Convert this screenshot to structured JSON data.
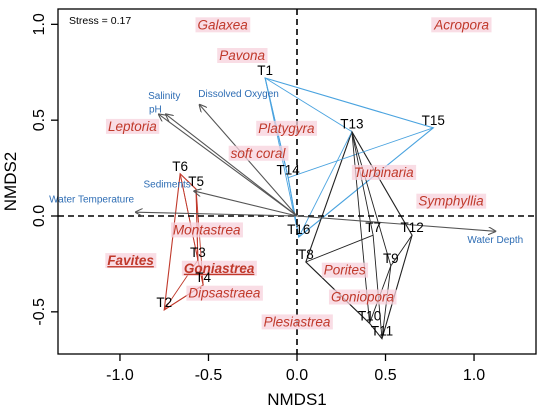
{
  "chart_data": {
    "type": "scatter",
    "title": "",
    "xlabel": "NMDS1",
    "ylabel": "NMDS2",
    "xlim": [
      -1.35,
      1.35
    ],
    "ylim": [
      -0.72,
      1.08
    ],
    "xticks": [
      {
        "value": -1.0,
        "label": "-1.0"
      },
      {
        "value": -0.5,
        "label": "-0.5"
      },
      {
        "value": 0.0,
        "label": "0.0"
      },
      {
        "value": 0.5,
        "label": "0.5"
      },
      {
        "value": 1.0,
        "label": "1.0"
      }
    ],
    "yticks": [
      {
        "value": -0.5,
        "label": "-0.5"
      },
      {
        "value": 0.0,
        "label": "0.0"
      },
      {
        "value": 0.5,
        "label": "0.5"
      },
      {
        "value": 1.0,
        "label": "1.0"
      }
    ],
    "annotation": "Stress = 0.17",
    "grid": false,
    "reference_lines": {
      "x": 0,
      "y": 0,
      "style": "dashed"
    },
    "colors": {
      "genus": "#c0392b",
      "env_label": "#2e6db4",
      "env_arrow": "#555555",
      "hull_red": "#c0392b",
      "hull_blue": "#4aa3df",
      "hull_black": "#222222",
      "label_bg": "#f7d2dc"
    },
    "sites": [
      {
        "label": "T1",
        "x": -0.18,
        "y": 0.72
      },
      {
        "label": "T2",
        "x": -0.75,
        "y": -0.49
      },
      {
        "label": "T3",
        "x": -0.56,
        "y": -0.23
      },
      {
        "label": "T4",
        "x": -0.53,
        "y": -0.36
      },
      {
        "label": "T5",
        "x": -0.57,
        "y": 0.14
      },
      {
        "label": "T6",
        "x": -0.66,
        "y": 0.22
      },
      {
        "label": "T7",
        "x": 0.43,
        "y": -0.1
      },
      {
        "label": "T8",
        "x": 0.05,
        "y": -0.24
      },
      {
        "label": "T9",
        "x": 0.53,
        "y": -0.26
      },
      {
        "label": "T10",
        "x": 0.41,
        "y": -0.56
      },
      {
        "label": "T11",
        "x": 0.48,
        "y": -0.64
      },
      {
        "label": "T12",
        "x": 0.65,
        "y": -0.1
      },
      {
        "label": "T13",
        "x": 0.31,
        "y": 0.44
      },
      {
        "label": "T14",
        "x": -0.05,
        "y": 0.2
      },
      {
        "label": "T15",
        "x": 0.77,
        "y": 0.46
      },
      {
        "label": "T16",
        "x": 0.01,
        "y": -0.11
      }
    ],
    "hulls": [
      {
        "color": "red",
        "sites": [
          "T6",
          "T5",
          "T3",
          "T4",
          "T2"
        ]
      },
      {
        "color": "blue",
        "sites": [
          "T1",
          "T15",
          "T16",
          "T14"
        ]
      },
      {
        "color": "black",
        "sites": [
          "T13",
          "T12",
          "T11",
          "T10",
          "T8"
        ]
      }
    ],
    "inner_lines": {
      "red": [
        [
          "T5",
          "T3"
        ],
        [
          "T5",
          "T4"
        ],
        [
          "T6",
          "T4"
        ],
        [
          "T3",
          "T2"
        ],
        [
          "T4",
          "T2"
        ],
        [
          "T6",
          "T3"
        ]
      ],
      "blue": [
        [
          "T1",
          "T14"
        ],
        [
          "T1",
          "T16"
        ],
        [
          "T14",
          "T16"
        ],
        [
          "T14",
          "T15"
        ],
        [
          "T1",
          "T13"
        ],
        [
          "T13",
          "T16"
        ]
      ],
      "black": [
        [
          "T13",
          "T7"
        ],
        [
          "T13",
          "T9"
        ],
        [
          "T13",
          "T10"
        ],
        [
          "T7",
          "T11"
        ],
        [
          "T7",
          "T8"
        ],
        [
          "T9",
          "T10"
        ],
        [
          "T9",
          "T11"
        ],
        [
          "T12",
          "T9"
        ],
        [
          "T8",
          "T10"
        ]
      ]
    },
    "genera": [
      {
        "label": "Galaxea",
        "x": -0.42,
        "y": 1.0,
        "underline": false,
        "bold": false
      },
      {
        "label": "Acropora",
        "x": 0.93,
        "y": 1.0,
        "underline": false,
        "bold": false
      },
      {
        "label": "Pavona",
        "x": -0.31,
        "y": 0.84,
        "underline": false,
        "bold": false
      },
      {
        "label": "Leptoria",
        "x": -0.93,
        "y": 0.47,
        "underline": false,
        "bold": false
      },
      {
        "label": "Platygyra",
        "x": -0.06,
        "y": 0.46,
        "underline": false,
        "bold": false
      },
      {
        "label": "soft coral",
        "x": -0.22,
        "y": 0.33,
        "underline": false,
        "bold": false
      },
      {
        "label": "Turbinaria",
        "x": 0.49,
        "y": 0.23,
        "underline": false,
        "bold": false
      },
      {
        "label": "Symphyllia",
        "x": 0.87,
        "y": 0.08,
        "underline": false,
        "bold": false
      },
      {
        "label": "Montastrea",
        "x": -0.51,
        "y": -0.07,
        "underline": false,
        "bold": false
      },
      {
        "label": "Favites",
        "x": -0.94,
        "y": -0.23,
        "underline": true,
        "bold": true
      },
      {
        "label": "Goniastrea",
        "x": -0.44,
        "y": -0.27,
        "underline": true,
        "bold": true
      },
      {
        "label": "Porites",
        "x": 0.27,
        "y": -0.28,
        "underline": false,
        "bold": false
      },
      {
        "label": "Dipsastraea",
        "x": -0.41,
        "y": -0.4,
        "underline": false,
        "bold": false
      },
      {
        "label": "Goniopora",
        "x": 0.37,
        "y": -0.42,
        "underline": false,
        "bold": false
      },
      {
        "label": "Plesiastrea",
        "x": 0.0,
        "y": -0.55,
        "underline": false,
        "bold": false
      }
    ],
    "env_vectors": [
      {
        "label": "Salinity",
        "x": -0.74,
        "y": 0.53,
        "lx": -0.75,
        "ly": 0.61,
        "anchor": "middle"
      },
      {
        "label": "pH",
        "x": -0.78,
        "y": 0.53,
        "lx": -0.8,
        "ly": 0.54,
        "anchor": "middle"
      },
      {
        "label": "Dissolved Oxygen",
        "x": -0.55,
        "y": 0.58,
        "lx": -0.33,
        "ly": 0.62,
        "anchor": "middle"
      },
      {
        "label": "Sediments",
        "x": -0.58,
        "y": 0.13,
        "lx": -0.6,
        "ly": 0.15,
        "anchor": "end"
      },
      {
        "label": "Water Temperature",
        "x": -0.91,
        "y": 0.02,
        "lx": -0.92,
        "ly": 0.07,
        "anchor": "end"
      },
      {
        "label": "Water Depth",
        "x": 1.12,
        "y": -0.08,
        "lx": 1.12,
        "ly": -0.14,
        "anchor": "middle"
      }
    ]
  }
}
